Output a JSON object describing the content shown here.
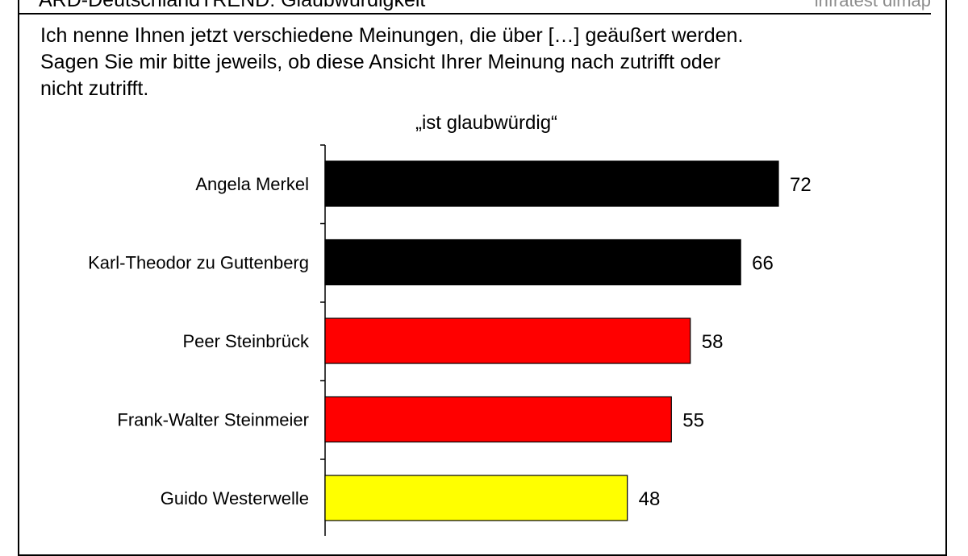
{
  "header": {
    "title": "ARD-DeutschlandTREND: Glaubwürdigkeit",
    "brand": "infratest dimap"
  },
  "question": {
    "lines": [
      "Ich nenne Ihnen jetzt verschiedene Meinungen, die über […] geäußert werden.",
      "Sagen Sie mir bitte jeweils, ob diese Ansicht Ihrer Meinung nach zutrifft oder",
      "nicht zutrifft."
    ]
  },
  "colors": {
    "black": "#000000",
    "red": "#ff0000",
    "yellow": "#ffff00"
  },
  "chart_data": {
    "type": "bar",
    "orientation": "horizontal",
    "subtitle": "„ist glaubwürdig“",
    "categories": [
      "Angela Merkel",
      "Karl-Theodor zu Guttenberg",
      "Peer Steinbrück",
      "Frank-Walter Steinmeier",
      "Guido Westerwelle"
    ],
    "values": [
      72,
      66,
      58,
      55,
      48
    ],
    "bar_colors": [
      "#000000",
      "#000000",
      "#ff0000",
      "#ff0000",
      "#ffff00"
    ],
    "xlim": [
      0,
      72
    ],
    "grid": false,
    "legend": "none"
  }
}
